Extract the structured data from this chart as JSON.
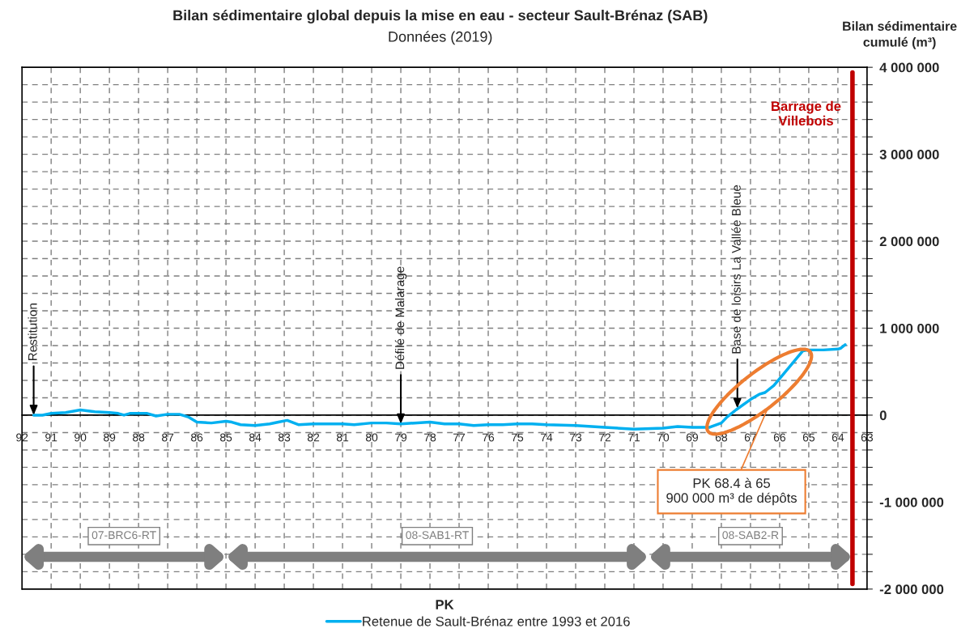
{
  "chart_data": {
    "type": "line",
    "title": "Bilan sédimentaire global depuis la mise en eau - secteur Sault-Brénaz (SAB)",
    "subtitle": "Données (2019)",
    "xlabel": "PK",
    "ylabel": "Bilan sédimentaire cumulé (m³)",
    "x": [
      91.6,
      91.3,
      91,
      90.5,
      90,
      89.5,
      89,
      88.7,
      88.5,
      88.3,
      88,
      87.7,
      87.4,
      87,
      86.6,
      86.3,
      86,
      85.5,
      85,
      84.8,
      84.5,
      84,
      83.5,
      83.2,
      82.9,
      82.5,
      82,
      81,
      80.6,
      80,
      79.5,
      79,
      78,
      77.5,
      77,
      76.5,
      76,
      75.5,
      75,
      74.5,
      74,
      73,
      72,
      71,
      70,
      69.5,
      69,
      68.4,
      68,
      67.8,
      67.5,
      67,
      66.7,
      66.5,
      66.2,
      66,
      65.6,
      65.2,
      65,
      64.5,
      64,
      63.9,
      63.75
    ],
    "series": [
      {
        "name": "Retenue de Sault-Brénaz entre 1993 et 2016",
        "color": "#00b0f0",
        "values": [
          0,
          0,
          20000,
          30000,
          60000,
          40000,
          30000,
          20000,
          0,
          20000,
          20000,
          20000,
          -10000,
          10000,
          10000,
          -20000,
          -80000,
          -90000,
          -70000,
          -80000,
          -110000,
          -120000,
          -100000,
          -80000,
          -60000,
          -110000,
          -100000,
          -100000,
          -110000,
          -90000,
          -90000,
          -100000,
          -80000,
          -100000,
          -100000,
          -120000,
          -110000,
          -110000,
          -100000,
          -100000,
          -110000,
          -120000,
          -140000,
          -160000,
          -150000,
          -130000,
          -140000,
          -140000,
          -90000,
          -20000,
          60000,
          180000,
          240000,
          260000,
          340000,
          420000,
          580000,
          740000,
          750000,
          750000,
          760000,
          770000,
          810000
        ]
      }
    ],
    "xlim": [
      92,
      63
    ],
    "xticks": [
      92,
      91,
      90,
      89,
      88,
      87,
      86,
      85,
      84,
      83,
      82,
      81,
      80,
      79,
      78,
      77,
      76,
      75,
      74,
      73,
      72,
      71,
      70,
      69,
      68,
      67,
      66,
      65,
      64,
      63
    ],
    "ylim": [
      -2000000,
      4000000
    ],
    "yticks": [
      {
        "value": -2000000,
        "label": "-2 000 000"
      },
      {
        "value": -1800000,
        "label": null
      },
      {
        "value": -1600000,
        "label": null
      },
      {
        "value": -1400000,
        "label": null
      },
      {
        "value": -1200000,
        "label": null
      },
      {
        "value": -1000000,
        "label": "-1 000 000"
      },
      {
        "value": -800000,
        "label": null
      },
      {
        "value": -600000,
        "label": null
      },
      {
        "value": -400000,
        "label": null
      },
      {
        "value": -200000,
        "label": null
      },
      0,
      {
        "value": 200000,
        "label": null
      },
      {
        "value": 400000,
        "label": null
      },
      {
        "value": 600000,
        "label": null
      },
      {
        "value": 800000,
        "label": null
      },
      {
        "value": 1000000,
        "label": "1 000 000"
      },
      {
        "value": 1200000,
        "label": null
      },
      {
        "value": 1400000,
        "label": null
      },
      {
        "value": 1600000,
        "label": null
      },
      {
        "value": 1800000,
        "label": null
      },
      {
        "value": 2000000,
        "label": "2 000 000"
      },
      {
        "value": 2200000,
        "label": null
      },
      {
        "value": 2400000,
        "label": null
      },
      {
        "value": 2600000,
        "label": null
      },
      {
        "value": 2800000,
        "label": null
      },
      {
        "value": 3000000,
        "label": "3 000 000"
      },
      {
        "value": 3200000,
        "label": null
      },
      {
        "value": 3400000,
        "label": null
      },
      {
        "value": 3600000,
        "label": null
      },
      {
        "value": 3800000,
        "label": null
      },
      {
        "value": 4000000,
        "label": "4 000 000"
      }
    ],
    "grid": true,
    "legend": "bottom",
    "line_style": "solid",
    "marker": "none",
    "ref_lines": [
      {
        "axis": "x",
        "value": 63.5,
        "label": "Barrage de\nVillebois",
        "color": "#c00000"
      }
    ],
    "annotations": [
      "07-BRC6-RT",
      "08-SAB1-RT",
      "08-SAB2-R",
      {
        "text": "Restitution",
        "x": 91.6,
        "y": 0
      },
      {
        "text": "Défilé de Malarage",
        "x": 79,
        "y": -100000
      },
      {
        "text": "Base de loisirs La Vallée Bleue",
        "x": 67.45,
        "y": 80000
      },
      "PK 68.4 à 65\n900 000 m³ de dépôts"
    ]
  }
}
